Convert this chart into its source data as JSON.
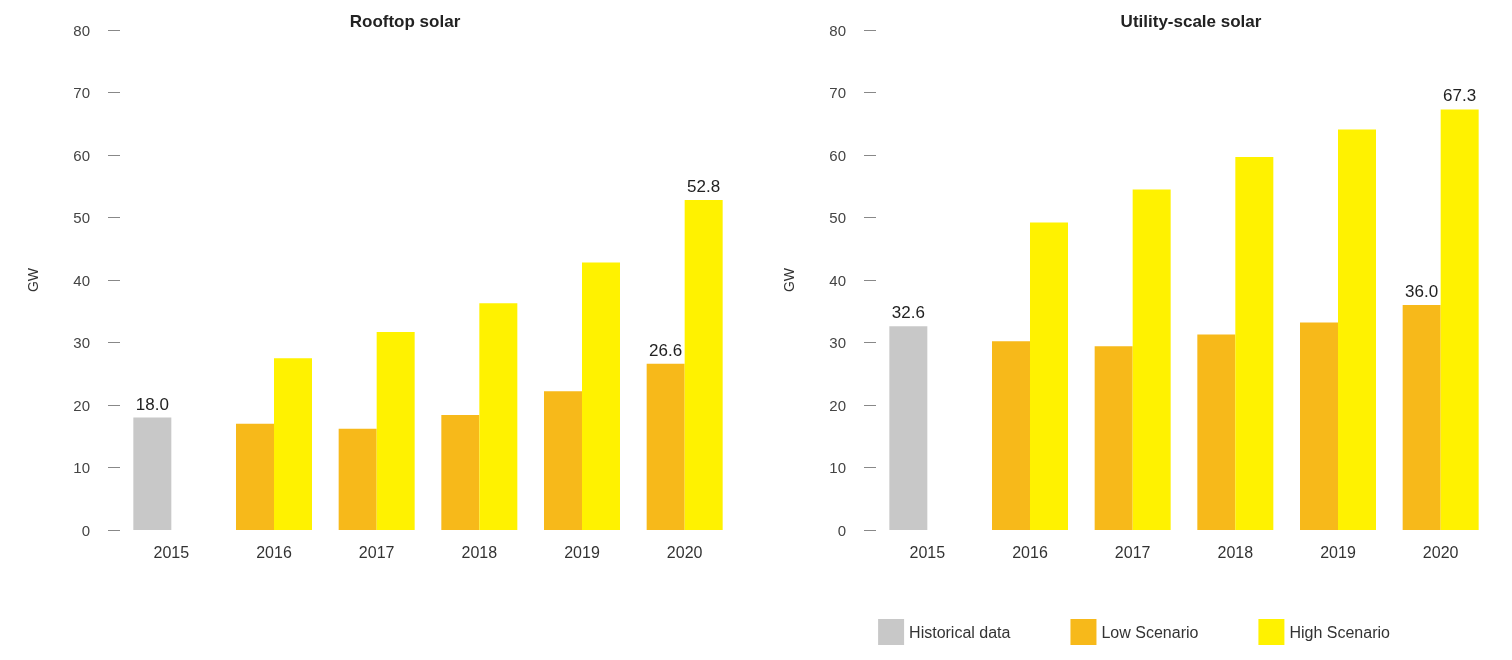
{
  "chart_data": [
    {
      "type": "bar",
      "title": "Rooftop solar",
      "ylabel": "GW",
      "categories": [
        "2015",
        "2016",
        "2017",
        "2018",
        "2019",
        "2020"
      ],
      "ylim": [
        0,
        80
      ],
      "yticks": [
        0,
        10,
        20,
        30,
        40,
        50,
        60,
        70,
        80
      ],
      "grid": false,
      "legend": false,
      "series": [
        {
          "color": "#c8c8c8",
          "values": [
            18.0,
            null,
            null,
            null,
            null,
            null
          ],
          "value_labels": [
            "18.0",
            null,
            null,
            null,
            null,
            null
          ]
        },
        {
          "color": "#f7b91a",
          "values": [
            null,
            17.0,
            16.2,
            18.4,
            22.2,
            26.6
          ],
          "value_labels": [
            null,
            null,
            null,
            null,
            null,
            "26.6"
          ]
        },
        {
          "color": "#fff200",
          "values": [
            null,
            27.5,
            31.7,
            36.3,
            42.8,
            52.8
          ],
          "value_labels": [
            null,
            null,
            null,
            null,
            null,
            "52.8"
          ]
        }
      ]
    },
    {
      "type": "bar",
      "title": "Utility-scale solar",
      "ylabel": "GW",
      "categories": [
        "2015",
        "2016",
        "2017",
        "2018",
        "2019",
        "2020"
      ],
      "ylim": [
        0,
        80
      ],
      "yticks": [
        0,
        10,
        20,
        30,
        40,
        50,
        60,
        70,
        80
      ],
      "grid": false,
      "legend": "bottom",
      "series": [
        {
          "name": "Historical data",
          "color": "#c8c8c8",
          "values": [
            32.6,
            null,
            null,
            null,
            null,
            null
          ],
          "value_labels": [
            "32.6",
            null,
            null,
            null,
            null,
            null
          ]
        },
        {
          "name": "Low Scenario",
          "color": "#f7b91a",
          "values": [
            null,
            30.2,
            29.4,
            31.3,
            33.2,
            36.0
          ],
          "value_labels": [
            null,
            null,
            null,
            null,
            null,
            "36.0"
          ]
        },
        {
          "name": "High Scenario",
          "color": "#fff200",
          "values": [
            null,
            49.2,
            54.5,
            59.7,
            64.1,
            67.3
          ],
          "value_labels": [
            null,
            null,
            null,
            null,
            null,
            "67.3"
          ]
        }
      ]
    }
  ]
}
